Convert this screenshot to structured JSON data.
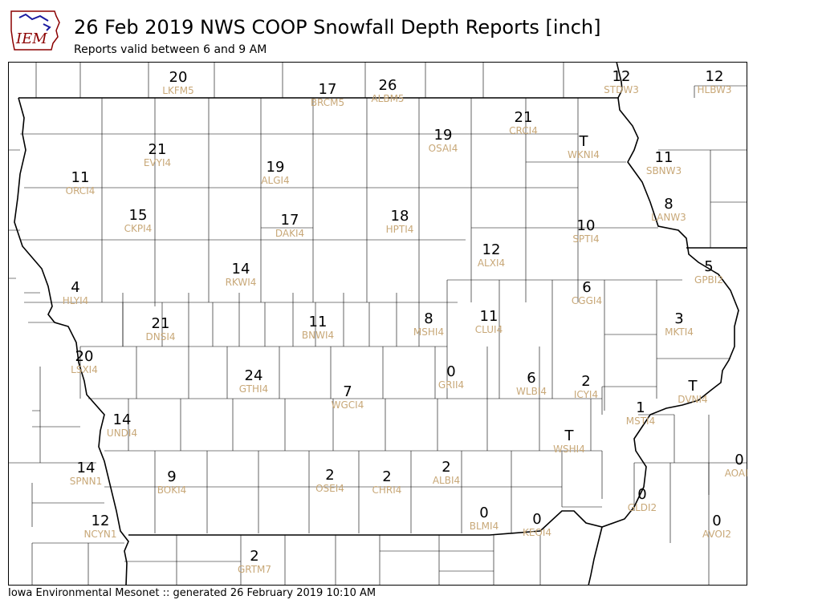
{
  "header": {
    "title": "26 Feb 2019 NWS COOP Snowfall Depth Reports [inch]",
    "subtitle": "Reports valid between 6 and 9 AM"
  },
  "logo": {
    "text": "IEM",
    "icon": "iowa-state-outline-logo",
    "color": "#8b0000"
  },
  "footer": {
    "text": "Iowa Environmental Mesonet :: generated 26 February 2019 10:10 AM"
  },
  "colors": {
    "value": "#000000",
    "station_id": "#c8a878",
    "border": "#000000"
  },
  "stations": [
    {
      "id": "LKFM5",
      "value": "20"
    },
    {
      "id": "BRCM5",
      "value": "17"
    },
    {
      "id": "ALBM5",
      "value": "26"
    },
    {
      "id": "STDW3",
      "value": "12"
    },
    {
      "id": "HLBW3",
      "value": "12"
    },
    {
      "id": "CRCI4",
      "value": "21"
    },
    {
      "id": "OSAI4",
      "value": "19"
    },
    {
      "id": "WKNI4",
      "value": "T"
    },
    {
      "id": "SBNW3",
      "value": "11"
    },
    {
      "id": "EVYI4",
      "value": "21"
    },
    {
      "id": "ALGI4",
      "value": "19"
    },
    {
      "id": "ORCI4",
      "value": "11"
    },
    {
      "id": "LANW3",
      "value": "8"
    },
    {
      "id": "CKPI4",
      "value": "15"
    },
    {
      "id": "DAKI4",
      "value": "17"
    },
    {
      "id": "HPTI4",
      "value": "18"
    },
    {
      "id": "SPTI4",
      "value": "10"
    },
    {
      "id": "ALXI4",
      "value": "12"
    },
    {
      "id": "RKWI4",
      "value": "14"
    },
    {
      "id": "GPBI2",
      "value": "5"
    },
    {
      "id": "HLYI4",
      "value": "4"
    },
    {
      "id": "CGGI4",
      "value": "6"
    },
    {
      "id": "DNSI4",
      "value": "21"
    },
    {
      "id": "BNWI4",
      "value": "11"
    },
    {
      "id": "MSHI4",
      "value": "8"
    },
    {
      "id": "CLUI4",
      "value": "11"
    },
    {
      "id": "MKTI4",
      "value": "3"
    },
    {
      "id": "LSXI4",
      "value": "20"
    },
    {
      "id": "GTHI4",
      "value": "24"
    },
    {
      "id": "GRII4",
      "value": "0"
    },
    {
      "id": "WLBI4",
      "value": "6"
    },
    {
      "id": "ICYI4",
      "value": "2"
    },
    {
      "id": "DVNI4",
      "value": "T"
    },
    {
      "id": "WGCI4",
      "value": "7"
    },
    {
      "id": "MSTI4",
      "value": "1"
    },
    {
      "id": "UNDI4",
      "value": "14"
    },
    {
      "id": "WSHI4",
      "value": "T"
    },
    {
      "id": "AOAI2",
      "value": "0"
    },
    {
      "id": "SPNN1",
      "value": "14"
    },
    {
      "id": "BOKI4",
      "value": "9"
    },
    {
      "id": "OSEI4",
      "value": "2"
    },
    {
      "id": "CHRI4",
      "value": "2"
    },
    {
      "id": "ALBI4",
      "value": "2"
    },
    {
      "id": "GLDI2",
      "value": "0"
    },
    {
      "id": "NCYN1",
      "value": "12"
    },
    {
      "id": "BLMI4",
      "value": "0"
    },
    {
      "id": "KEOI4",
      "value": "0"
    },
    {
      "id": "AVOI2",
      "value": "0"
    },
    {
      "id": "GRTM7",
      "value": "2"
    }
  ]
}
